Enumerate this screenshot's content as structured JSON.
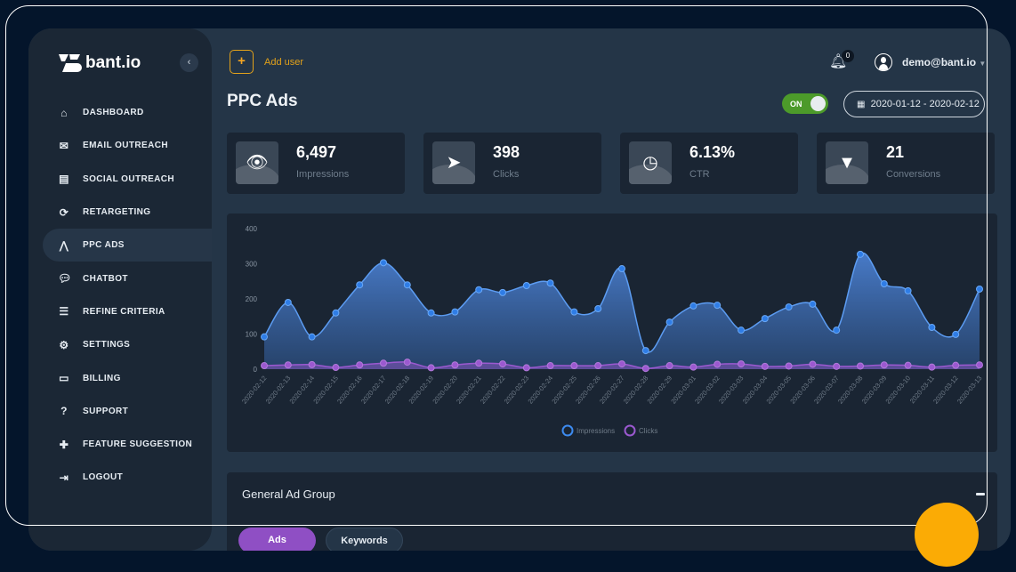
{
  "sidebar": {
    "logo": "bant.io",
    "collapse_icon": "chevron-left",
    "items": [
      {
        "label": "DASHBOARD",
        "icon": "home"
      },
      {
        "label": "EMAIL OUTREACH",
        "icon": "envelope"
      },
      {
        "label": "SOCIAL OUTREACH",
        "icon": "id-card"
      },
      {
        "label": "RETARGETING",
        "icon": "sync"
      },
      {
        "label": "PPC ADS",
        "icon": "road"
      },
      {
        "label": "CHATBOT",
        "icon": "comments"
      },
      {
        "label": "REFINE CRITERIA",
        "icon": "sliders"
      },
      {
        "label": "SETTINGS",
        "icon": "cog"
      },
      {
        "label": "BILLING",
        "icon": "credit-card"
      },
      {
        "label": "SUPPORT",
        "icon": "question"
      },
      {
        "label": "FEATURE SUGGESTION",
        "icon": "puzzle"
      },
      {
        "label": "LOGOUT",
        "icon": "sign-out"
      }
    ]
  },
  "header": {
    "add_icon": "+",
    "add_label": "Add user",
    "notifications": "0",
    "user": "demo@bant.io",
    "title": "PPC Ads",
    "toggle": "ON",
    "date_range": "2020-01-12 - 2020-02-12"
  },
  "stats": [
    {
      "value": "6,497",
      "label": "Impressions",
      "icon": "👁"
    },
    {
      "value": "398",
      "label": "Clicks",
      "icon": "➤"
    },
    {
      "value": "6.13%",
      "label": "CTR",
      "icon": "◷"
    },
    {
      "value": "21",
      "label": "Conversions",
      "icon": "▼"
    }
  ],
  "chart_data": {
    "type": "area",
    "ylim": [
      0,
      400
    ],
    "yticks": [
      0,
      100,
      200,
      300,
      400
    ],
    "x": [
      "2020-02-12",
      "2020-02-13",
      "2020-02-14",
      "2020-02-15",
      "2020-02-16",
      "2020-02-17",
      "2020-02-18",
      "2020-02-19",
      "2020-02-20",
      "2020-02-21",
      "2020-02-22",
      "2020-02-23",
      "2020-02-24",
      "2020-02-25",
      "2020-02-26",
      "2020-02-27",
      "2020-02-28",
      "2020-02-29",
      "2020-03-01",
      "2020-03-02",
      "2020-03-03",
      "2020-03-04",
      "2020-03-05",
      "2020-03-06",
      "2020-03-07",
      "2020-03-08",
      "2020-03-09",
      "2020-03-10",
      "2020-03-11",
      "2020-03-12",
      "2020-03-13"
    ],
    "series": [
      {
        "name": "Impressions",
        "color": "#3d8bf0",
        "values": [
          92,
          190,
          92,
          160,
          240,
          303,
          240,
          160,
          163,
          226,
          218,
          238,
          245,
          163,
          172,
          286,
          53,
          134,
          180,
          182,
          111,
          144,
          177,
          185,
          111,
          327,
          243,
          223,
          119,
          99,
          228
        ]
      },
      {
        "name": "Clicks",
        "color": "#9b59d0",
        "values": [
          10,
          12,
          13,
          5,
          12,
          17,
          20,
          4,
          12,
          17,
          15,
          4,
          10,
          10,
          10,
          15,
          2,
          10,
          6,
          14,
          15,
          8,
          9,
          14,
          8,
          9,
          12,
          11,
          6,
          11,
          12
        ]
      }
    ],
    "legend": "bottom"
  },
  "group": {
    "title": "General Ad Group",
    "tabs": [
      "Ads",
      "Keywords"
    ]
  }
}
